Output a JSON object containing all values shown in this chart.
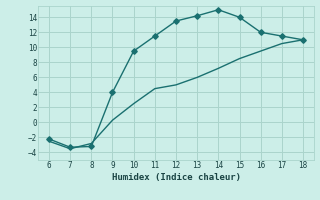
{
  "xlabel": "Humidex (Indice chaleur)",
  "bg_color": "#cceee8",
  "grid_color": "#aad4cc",
  "line_color": "#1a7070",
  "curve_x": [
    6,
    7,
    8,
    9,
    10,
    11,
    12,
    13,
    14,
    15,
    16,
    17,
    18
  ],
  "curve_y": [
    -2.2,
    -3.3,
    -3.2,
    4.0,
    9.5,
    11.5,
    13.5,
    14.2,
    15.0,
    14.0,
    12.0,
    11.5,
    11.0
  ],
  "line_x": [
    6,
    7,
    8,
    9,
    10,
    11,
    12,
    13,
    14,
    15,
    16,
    17,
    18
  ],
  "line_y": [
    -2.5,
    -3.5,
    -2.8,
    0.3,
    2.5,
    4.5,
    5.0,
    6.0,
    7.2,
    8.5,
    9.5,
    10.5,
    11.0
  ],
  "xlim": [
    5.5,
    18.5
  ],
  "ylim": [
    -5.0,
    15.5
  ],
  "xticks": [
    6,
    7,
    8,
    9,
    10,
    11,
    12,
    13,
    14,
    15,
    16,
    17,
    18
  ],
  "yticks": [
    -4,
    -2,
    0,
    2,
    4,
    6,
    8,
    10,
    12,
    14
  ],
  "marker": "D",
  "markersize": 2.8,
  "linewidth": 1.0
}
